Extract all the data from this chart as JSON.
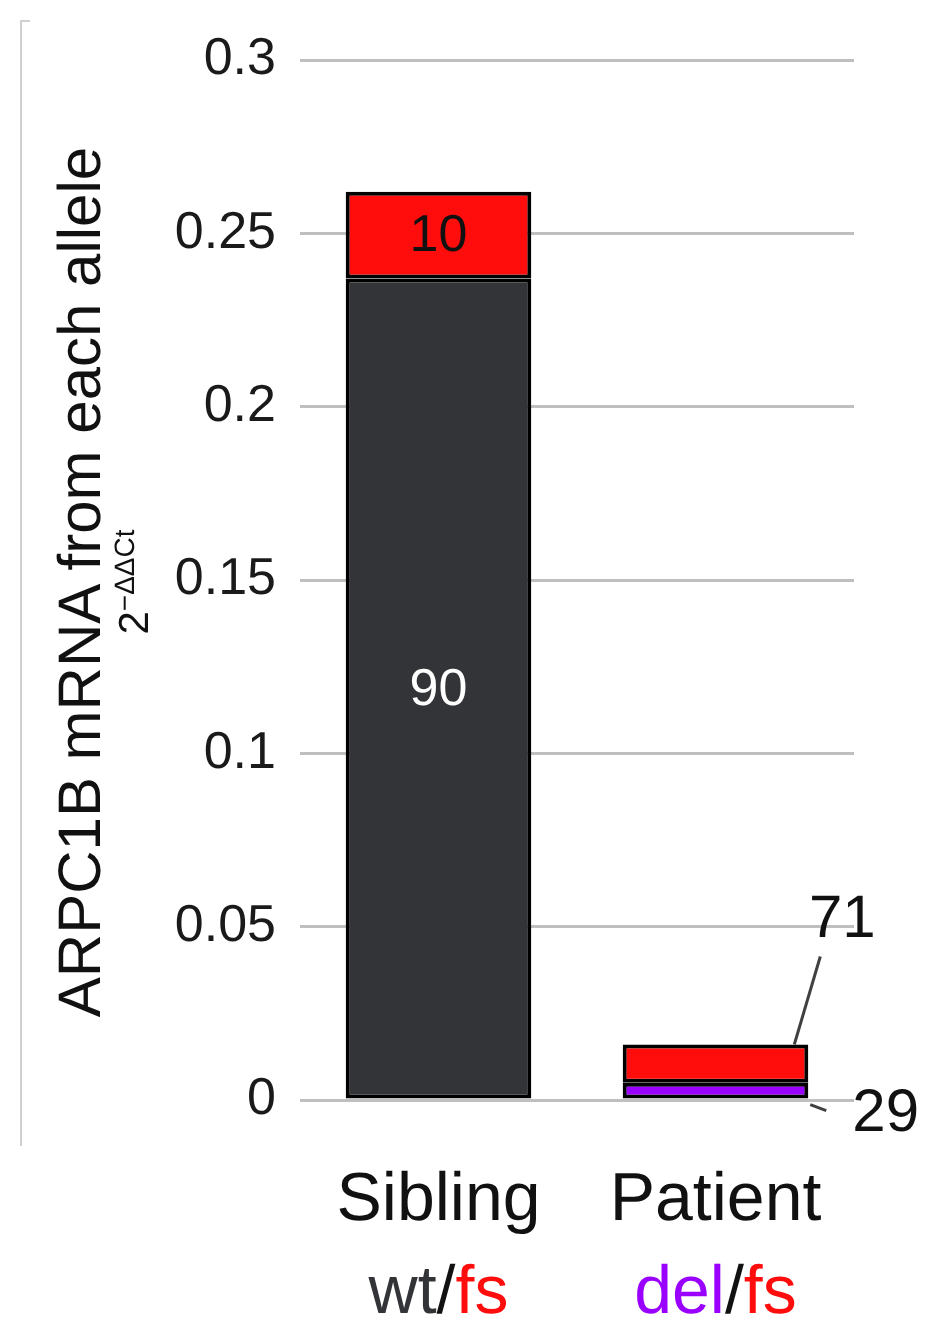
{
  "chart_data": {
    "type": "bar",
    "stacked": true,
    "ylabel": "ARPC1B mRNA from each allele\n2$^{−ΔΔCt}$",
    "categories": [
      "Sibling",
      "Patient"
    ],
    "series": [
      {
        "colors": [
          "#333438",
          "#9900ff"
        ],
        "values": [
          0.237,
          0.005
        ]
      },
      {
        "color": "#ff0d0d",
        "values": [
          0.025,
          0.011
        ]
      }
    ],
    "ylim": [
      0,
      0.3
    ],
    "yticks": [
      0,
      0.05,
      0.1,
      0.15,
      0.2,
      0.25,
      0.3
    ],
    "grid": "y",
    "annotations": [
      "wt/fs",
      "del/fs",
      "90",
      {
        "text": "10",
        "x": "Sibling",
        "y": 0.262
      },
      {
        "text": "29",
        "x": "Patient",
        "y": 0.005
      },
      {
        "text": "71",
        "x": "Patient",
        "y": 0.016
      }
    ]
  }
}
